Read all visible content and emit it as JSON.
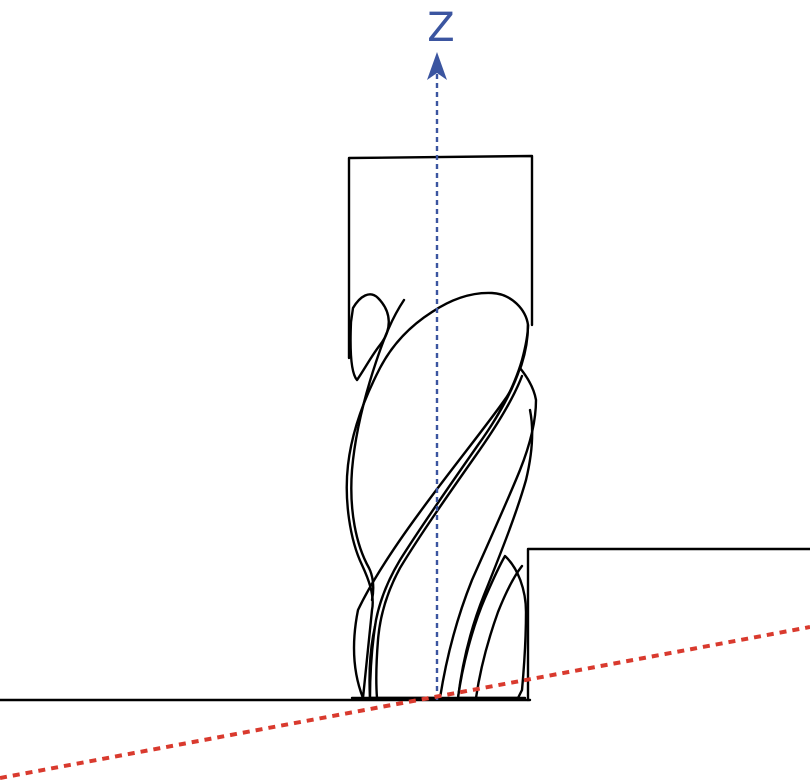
{
  "axis": {
    "label": "Z",
    "color": "#3b55a0"
  },
  "cut_line": {
    "color": "#d93a2e"
  },
  "outline_color": "#000000",
  "background_color": "#ffffff",
  "icons": {
    "tool": "end-mill",
    "arrow": "arrow-up"
  }
}
